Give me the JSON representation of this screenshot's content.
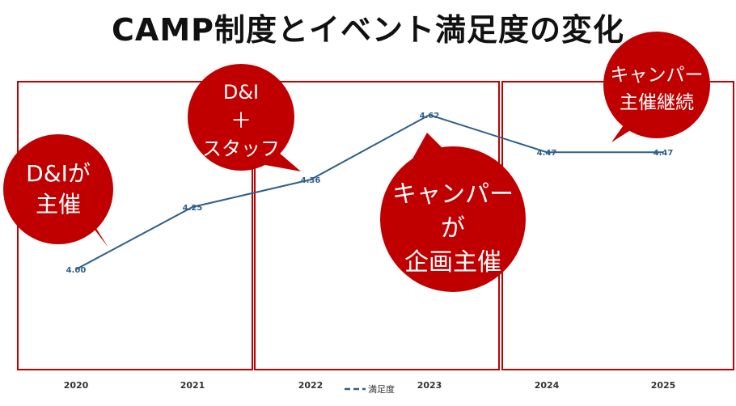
{
  "title": "CAMP制度とイベント満足度の変化",
  "chart_data": {
    "type": "line",
    "categories": [
      "2020",
      "2021",
      "2022",
      "2023",
      "2024",
      "2025"
    ],
    "x": [
      "2020",
      "2021",
      "2022",
      "2023",
      "2024",
      "2025"
    ],
    "series": [
      {
        "name": "満足度",
        "values": [
          4.0,
          4.25,
          4.36,
          4.62,
          4.47,
          4.47
        ],
        "color": "#2f5f8a"
      }
    ],
    "data_labels": [
      "4.00",
      "4.25",
      "4.36",
      "4.62",
      "4.47",
      "4.47"
    ],
    "legend": {
      "label": "満足度",
      "placement": "bottom"
    },
    "grid": false
  },
  "annotations": [
    {
      "id": "da",
      "lines": [
        "D&Iが",
        "主催"
      ]
    },
    {
      "id": "ds",
      "lines": [
        "D&I",
        "＋",
        "スタッフ"
      ]
    },
    {
      "id": "cp",
      "lines": [
        "キャンパー",
        "が",
        "企画主催"
      ]
    },
    {
      "id": "cc",
      "lines": [
        "キャンパー",
        "主催継続"
      ]
    }
  ],
  "colors": {
    "accent": "#c00000",
    "line": "#2f5f8a"
  }
}
